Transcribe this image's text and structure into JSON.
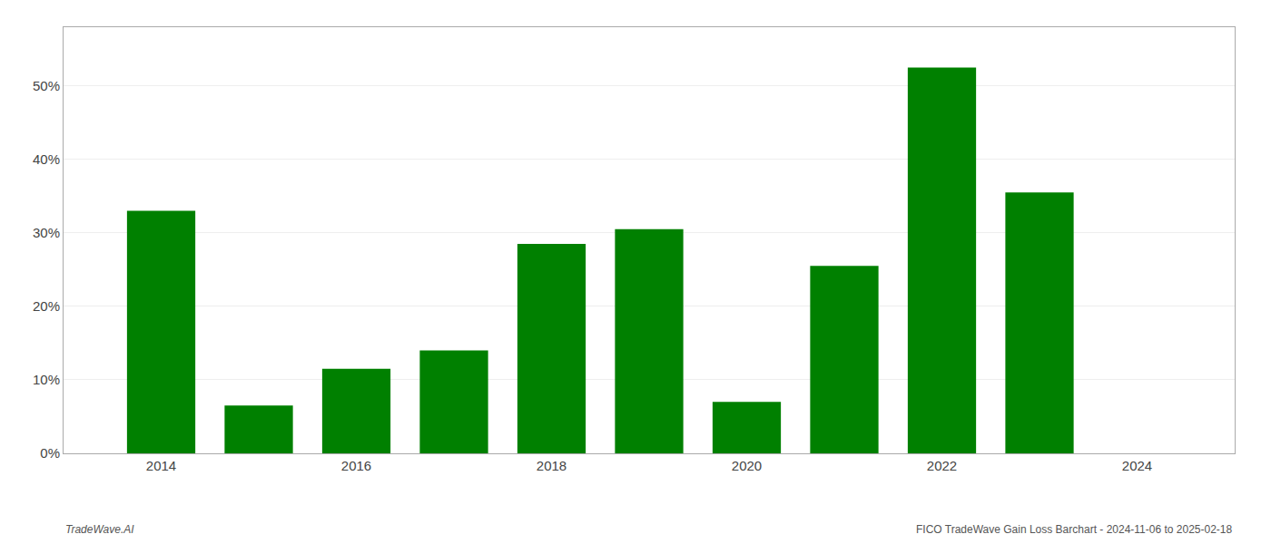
{
  "chart_data": {
    "type": "bar",
    "x": [
      2014,
      2015,
      2016,
      2017,
      2018,
      2019,
      2020,
      2021,
      2022,
      2023
    ],
    "values": [
      33.0,
      6.5,
      11.5,
      14.0,
      28.5,
      30.5,
      7.0,
      25.5,
      52.5,
      35.5
    ],
    "color": "#008000",
    "xlim": [
      2013.0,
      2025.0
    ],
    "xticks": [
      2014,
      2016,
      2018,
      2020,
      2022,
      2024
    ],
    "ylim": [
      0,
      58
    ],
    "yticks": [
      {
        "value": 0,
        "label": "0%"
      },
      {
        "value": 10,
        "label": "10%"
      },
      {
        "value": 20,
        "label": "20%"
      },
      {
        "value": 30,
        "label": "30%"
      },
      {
        "value": 40,
        "label": "40%"
      },
      {
        "value": 50,
        "label": "50%"
      }
    ],
    "grid": true,
    "annotations": [
      "TradeWave.AI",
      "FICO TradeWave Gain Loss Barchart - 2024-11-06 to 2025-02-18"
    ]
  }
}
